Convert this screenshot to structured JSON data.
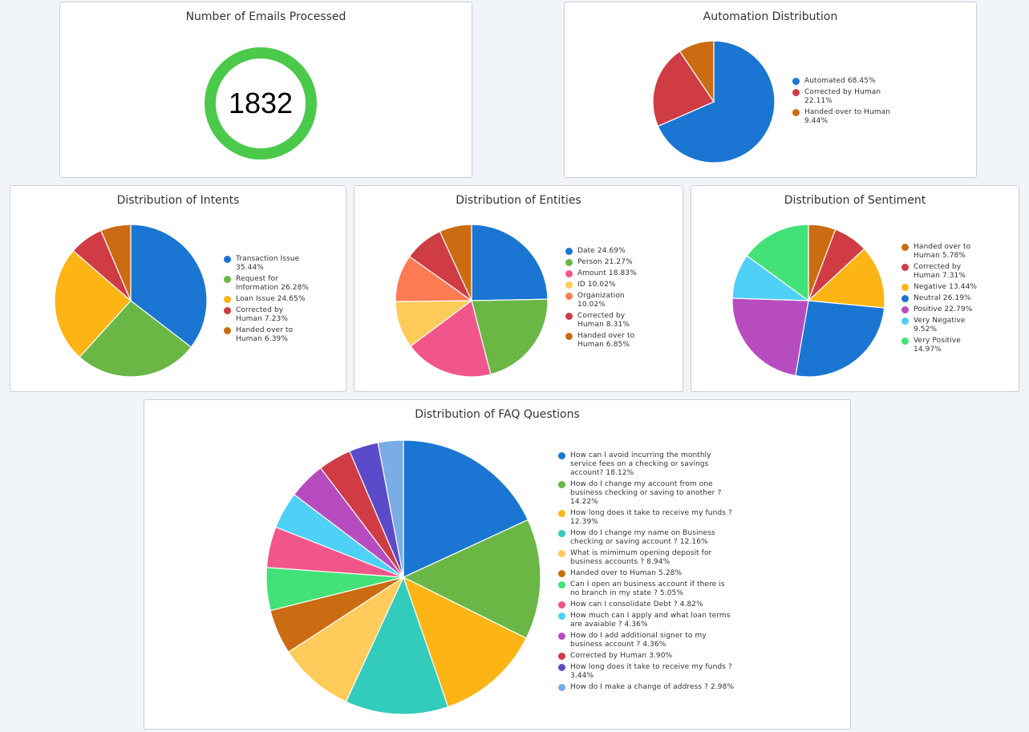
{
  "cards": {
    "emails": {
      "title": "Number of Emails Processed",
      "value": "1832",
      "ring_color": "#4bc94b"
    }
  },
  "chart_data": [
    {
      "type": "pie",
      "title": "Automation Distribution",
      "slices": [
        {
          "label": "Automated",
          "value": 68.45,
          "display": "Automated 68.45%",
          "color": "#1a76d2"
        },
        {
          "label": "Corrected by Human",
          "value": 22.11,
          "display": "Corrected by Human 22.11%",
          "color": "#cf3c44"
        },
        {
          "label": "Handed over to Human",
          "value": 9.44,
          "display": "Handed over to Human 9.44%",
          "color": "#cb6b12"
        }
      ],
      "legend_position": "right"
    },
    {
      "type": "pie",
      "title": "Distribution of Intents",
      "slices": [
        {
          "label": "Transaction Issue",
          "value": 35.44,
          "display": "Transaction Issue 35.44%",
          "color": "#1a76d2"
        },
        {
          "label": "Request for Information",
          "value": 26.28,
          "display": "Request for Information 26.28%",
          "color": "#6ab746"
        },
        {
          "label": "Loan Issue",
          "value": 24.65,
          "display": "Loan Issue 24.65%",
          "color": "#fdb515"
        },
        {
          "label": "Corrected by Human",
          "value": 7.23,
          "display": "Corrected by Human 7.23%",
          "color": "#cf3c44"
        },
        {
          "label": "Handed over to Human",
          "value": 6.39,
          "display": "Handed over to Human 6.39%",
          "color": "#cb6b12"
        }
      ],
      "legend_position": "right"
    },
    {
      "type": "pie",
      "title": "Distribution of Entities",
      "slices": [
        {
          "label": "Date",
          "value": 24.69,
          "display": "Date 24.69%",
          "color": "#1a76d2"
        },
        {
          "label": "Person",
          "value": 21.27,
          "display": "Person 21.27%",
          "color": "#6ab746"
        },
        {
          "label": "Amount",
          "value": 18.83,
          "display": "Amount 18.83%",
          "color": "#f1568b"
        },
        {
          "label": "ID",
          "value": 10.02,
          "display": "ID 10.02%",
          "color": "#ffcb5a"
        },
        {
          "label": "Organization",
          "value": 10.02,
          "display": "Organization 10.02%",
          "color": "#fd7b52"
        },
        {
          "label": "Corrected by Human",
          "value": 8.31,
          "display": "Corrected by Human 8.31%",
          "color": "#cf3c44"
        },
        {
          "label": "Handed over to Human",
          "value": 6.85,
          "display": "Handed over to Human 6.85%",
          "color": "#cb6b12"
        }
      ],
      "legend_position": "right"
    },
    {
      "type": "pie",
      "title": "Distribution of Sentiment",
      "slices": [
        {
          "label": "Handed over to Human",
          "value": 5.78,
          "display": "Handed over to Human 5.78%",
          "color": "#cb6b12"
        },
        {
          "label": "Corrected by Human",
          "value": 7.31,
          "display": "Corrected by Human 7.31%",
          "color": "#cf3c44"
        },
        {
          "label": "Negative",
          "value": 13.44,
          "display": "Negative 13.44%",
          "color": "#fdb515"
        },
        {
          "label": "Neutral",
          "value": 26.19,
          "display": "Neutral 26.19%",
          "color": "#1a76d2"
        },
        {
          "label": "Positive",
          "value": 22.79,
          "display": "Positive 22.79%",
          "color": "#b74cc0"
        },
        {
          "label": "Very Negative",
          "value": 9.52,
          "display": "Very Negative 9.52%",
          "color": "#4ed0f7"
        },
        {
          "label": "Very Positive",
          "value": 14.97,
          "display": "Very Positive 14.97%",
          "color": "#42e278"
        }
      ],
      "legend_position": "right"
    },
    {
      "type": "pie",
      "title": "Distribution of FAQ Questions",
      "slices": [
        {
          "label": "How can I avoid incurring the monthly service fees on a checking or savings account?",
          "value": 18.12,
          "display": "How can I avoid incurring the monthly service fees on a checking or savings account? 18.12%",
          "color": "#1a76d2"
        },
        {
          "label": "How do I change my account from one business checking or saving to another ?",
          "value": 14.22,
          "display": "How do I change my account from one business checking or saving to another ? 14.22%",
          "color": "#6ab746"
        },
        {
          "label": "How long does it take to receive my funds ?",
          "value": 12.39,
          "display": "How long does it take to receive my funds ? 12.39%",
          "color": "#fdb515"
        },
        {
          "label": "How do I change my name on Business checking or saving account ?",
          "value": 12.16,
          "display": "How do I change my name on Business checking or saving account ? 12.16%",
          "color": "#33cbbb"
        },
        {
          "label": "What is mimimum opening deposit for business accounts ?",
          "value": 8.94,
          "display": "What is mimimum opening deposit for business accounts ? 8.94%",
          "color": "#ffcb5a"
        },
        {
          "label": "Handed over to Human",
          "value": 5.28,
          "display": "Handed over to Human 5.28%",
          "color": "#cb6b12"
        },
        {
          "label": "Can I open an business account if there is no branch in my state ?",
          "value": 5.05,
          "display": "Can I open an business account if there is no branch in my state ? 5.05%",
          "color": "#42e278"
        },
        {
          "label": "How can I consolidate Debt ?",
          "value": 4.82,
          "display": "How can I consolidate Debt ? 4.82%",
          "color": "#f1568b"
        },
        {
          "label": "How much can I apply and what loan terms are avaiable ?",
          "value": 4.36,
          "display": "How much can I apply and what loan terms are avaiable ? 4.36%",
          "color": "#4ed0f7"
        },
        {
          "label": "How do I add additional signer to my business account ?",
          "value": 4.36,
          "display": "How do I add additional signer to my business account ? 4.36%",
          "color": "#b74cc0"
        },
        {
          "label": "Corrected by Human",
          "value": 3.9,
          "display": "Corrected by Human 3.90%",
          "color": "#cf3c44"
        },
        {
          "label": "How long does it take to receive my funds ?",
          "value": 3.44,
          "display": "How long does it take to receive my funds ? 3.44%",
          "color": "#5b4ac9"
        },
        {
          "label": "How do I make a change of address ?",
          "value": 2.98,
          "display": "How do I make a change of address ? 2.98%",
          "color": "#7aace6"
        }
      ],
      "legend_position": "right"
    }
  ]
}
